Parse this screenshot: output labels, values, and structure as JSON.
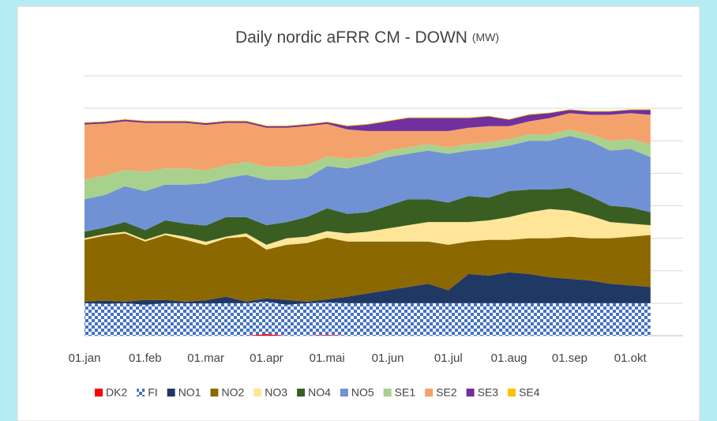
{
  "chart_data": {
    "type": "stacked_area",
    "title": "Daily nordic aFRR CM - DOWN",
    "title_unit": "(MW)",
    "categories": [
      "01.jan",
      null,
      null,
      "01.feb",
      null,
      null,
      "01.mar",
      null,
      null,
      "01.apr",
      null,
      null,
      "01.mai",
      null,
      null,
      "01.jun",
      null,
      null,
      "01.jul",
      null,
      null,
      "01.aug",
      null,
      null,
      "01.sep",
      null,
      null,
      "01.okt",
      null
    ],
    "ylim": [
      0,
      800
    ],
    "yticks": [
      0,
      100,
      200,
      300,
      400,
      500,
      600,
      700,
      800
    ],
    "grid": true,
    "legend": "bottom",
    "series": [
      {
        "name": "DK2",
        "color": "#ff0000",
        "values": [
          0,
          0,
          0,
          0,
          0,
          0,
          0,
          0,
          0,
          5,
          0,
          0,
          2,
          0,
          0,
          0,
          0,
          0,
          0,
          0,
          0,
          0,
          0,
          0,
          0,
          0,
          0,
          0,
          0
        ]
      },
      {
        "name": "FI",
        "color": "#4472c4",
        "pattern": "checker",
        "values": [
          100,
          98,
          100,
          95,
          100,
          100,
          99,
          100,
          100,
          100,
          95,
          100,
          100,
          100,
          100,
          100,
          100,
          100,
          100,
          100,
          100,
          100,
          100,
          100,
          100,
          100,
          100,
          100,
          100
        ]
      },
      {
        "name": "NO1",
        "color": "#203864",
        "values": [
          5,
          10,
          5,
          15,
          10,
          5,
          10,
          20,
          5,
          10,
          15,
          5,
          10,
          20,
          30,
          40,
          50,
          60,
          40,
          90,
          85,
          95,
          90,
          80,
          75,
          70,
          60,
          55,
          50
        ]
      },
      {
        "name": "NO2",
        "color": "#8c6800",
        "values": [
          190,
          200,
          210,
          180,
          200,
          190,
          170,
          180,
          200,
          150,
          170,
          180,
          190,
          170,
          160,
          150,
          140,
          130,
          140,
          100,
          110,
          100,
          110,
          120,
          130,
          130,
          140,
          150,
          160
        ]
      },
      {
        "name": "NO3",
        "color": "#ffe699",
        "values": [
          5,
          5,
          5,
          5,
          5,
          10,
          10,
          5,
          10,
          15,
          20,
          20,
          20,
          25,
          30,
          40,
          50,
          60,
          70,
          60,
          60,
          70,
          80,
          90,
          80,
          70,
          50,
          40,
          30
        ]
      },
      {
        "name": "NO4",
        "color": "#3a5e22",
        "values": [
          20,
          20,
          30,
          30,
          40,
          40,
          50,
          60,
          50,
          60,
          50,
          60,
          70,
          60,
          60,
          70,
          80,
          70,
          60,
          80,
          70,
          80,
          70,
          60,
          70,
          60,
          50,
          50,
          40
        ]
      },
      {
        "name": "NO5",
        "color": "#7092d4",
        "values": [
          100,
          100,
          110,
          120,
          110,
          120,
          130,
          120,
          130,
          140,
          130,
          120,
          130,
          140,
          150,
          150,
          140,
          150,
          150,
          140,
          150,
          140,
          150,
          150,
          160,
          170,
          170,
          180,
          170
        ]
      },
      {
        "name": "SE1",
        "color": "#a9d18e",
        "values": [
          60,
          60,
          50,
          60,
          50,
          50,
          40,
          40,
          40,
          40,
          40,
          40,
          30,
          30,
          20,
          20,
          20,
          20,
          20,
          20,
          20,
          20,
          20,
          20,
          20,
          20,
          30,
          30,
          40
        ]
      },
      {
        "name": "SE2",
        "color": "#f4a26c",
        "values": [
          170,
          160,
          150,
          150,
          140,
          140,
          140,
          130,
          120,
          120,
          120,
          120,
          100,
          90,
          80,
          60,
          50,
          40,
          50,
          50,
          50,
          40,
          40,
          50,
          50,
          60,
          80,
          80,
          90
        ]
      },
      {
        "name": "SE3",
        "color": "#7030a0",
        "values": [
          5,
          5,
          5,
          5,
          5,
          5,
          5,
          5,
          5,
          5,
          5,
          5,
          5,
          10,
          20,
          30,
          40,
          40,
          40,
          30,
          30,
          20,
          20,
          15,
          10,
          10,
          10,
          10,
          15
        ]
      },
      {
        "name": "SE4",
        "color": "#ffc000",
        "values": [
          2,
          2,
          2,
          2,
          2,
          2,
          2,
          2,
          2,
          2,
          2,
          2,
          2,
          2,
          2,
          2,
          2,
          2,
          2,
          2,
          2,
          2,
          2,
          2,
          2,
          2,
          2,
          2,
          2
        ]
      }
    ]
  }
}
